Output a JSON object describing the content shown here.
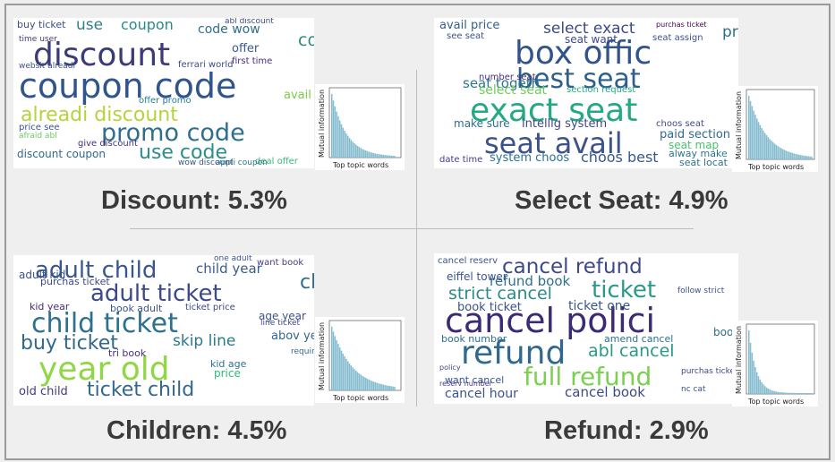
{
  "panels": [
    {
      "caption": "Discount: 5.3%",
      "chart_ylabel": "Mutual information",
      "chart_xlabel": "Top topic words",
      "words": [
        "discount",
        "coupon code",
        "alreadi discount",
        "promo code",
        "use code",
        "code wow",
        "code love",
        "coupon",
        "use",
        "buy ticket",
        "avail discount",
        "offer",
        "ferrari world",
        "websit alreadi",
        "discount coupon",
        "price see",
        "give discount",
        "afraid abl",
        "offer promo",
        "first time",
        "time user",
        "abl discount",
        "deal offer",
        "wow discount",
        "appli coupon"
      ]
    },
    {
      "caption": "Select Seat: 4.9%",
      "chart_ylabel": "Mutual information",
      "chart_xlabel": "Top topic words",
      "words": [
        "box offic",
        "best seat",
        "exact seat",
        "seat avail",
        "select exact",
        "price paid",
        "seat togeth",
        "avail price",
        "select seat",
        "intellig system",
        "system choos",
        "choos best",
        "seat want",
        "seat assign",
        "number seat",
        "make sure",
        "paid section",
        "seat map",
        "section request",
        "see seat",
        "date time",
        "alway make",
        "seat locat",
        "purchas ticket",
        "choos seat"
      ]
    },
    {
      "caption": "Children: 4.5%",
      "chart_ylabel": "Mutual information",
      "chart_xlabel": "Top topic words",
      "words": [
        "adult child",
        "adult ticket",
        "child ticket",
        "year old",
        "child age",
        "buy ticket",
        "skip line",
        "ticket child",
        "child year",
        "old child",
        "abov year",
        "age year",
        "kid age",
        "purchas ticket",
        "want book",
        "book adult",
        "tri book",
        "ticket price",
        "adult kid",
        "kid year",
        "one adult",
        "price",
        "requir ticket",
        "line ticket"
      ]
    },
    {
      "caption": "Refund: 2.9%",
      "chart_ylabel": "Mutual information",
      "chart_xlabel": "Top topic words",
      "words": [
        "cancel refund",
        "cancel polici",
        "refund",
        "full refund",
        "strict cancel",
        "refund book",
        "ticket",
        "abl cancel",
        "cancel book",
        "cancel hour",
        "book ticket",
        "ticket one",
        "amend cancel",
        "eiffel tower",
        "cancel reserv",
        "book number",
        "want cancel",
        "book confirm",
        "reserv number",
        "follow strict",
        "purchas ticket",
        "policy",
        "nc cat"
      ]
    }
  ]
}
